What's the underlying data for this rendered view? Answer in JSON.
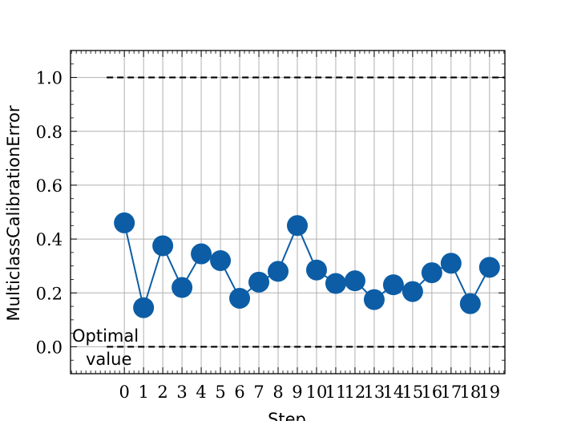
{
  "chart_data": {
    "type": "line",
    "title": "",
    "xlabel": "Step",
    "ylabel": "MulticlassCalibrationError",
    "x": [
      0,
      1,
      2,
      3,
      4,
      5,
      6,
      7,
      8,
      9,
      10,
      11,
      12,
      13,
      14,
      15,
      16,
      17,
      18,
      19
    ],
    "xtick_labels": [
      "0",
      "1",
      "2",
      "3",
      "4",
      "5",
      "6",
      "7",
      "8",
      "9",
      "10",
      "11",
      "12",
      "13",
      "14",
      "15",
      "16",
      "17",
      "18",
      "19"
    ],
    "xlim": [
      -2.8,
      19.8
    ],
    "ylim": [
      -0.1,
      1.1
    ],
    "yticks": [
      0.0,
      0.2,
      0.4,
      0.6,
      0.8,
      1.0
    ],
    "ytick_labels": [
      "0.0",
      "0.2",
      "0.4",
      "0.6",
      "0.8",
      "1.0"
    ],
    "grid": true,
    "series": [
      {
        "color": "#0c5da5",
        "marker": "circle",
        "values": [
          0.46,
          0.145,
          0.375,
          0.22,
          0.345,
          0.32,
          0.18,
          0.24,
          0.28,
          0.45,
          0.285,
          0.235,
          0.245,
          0.175,
          0.23,
          0.205,
          0.275,
          0.31,
          0.16,
          0.295
        ]
      }
    ],
    "reference_lines": [
      {
        "y": 1.0,
        "style": "dashed",
        "color": "#000000",
        "label": ""
      },
      {
        "y": 0.0,
        "style": "dashed",
        "color": "#000000",
        "label": "Optimal value"
      }
    ],
    "annotation": {
      "text_line1": "Optimal",
      "text_line2": "value"
    }
  }
}
